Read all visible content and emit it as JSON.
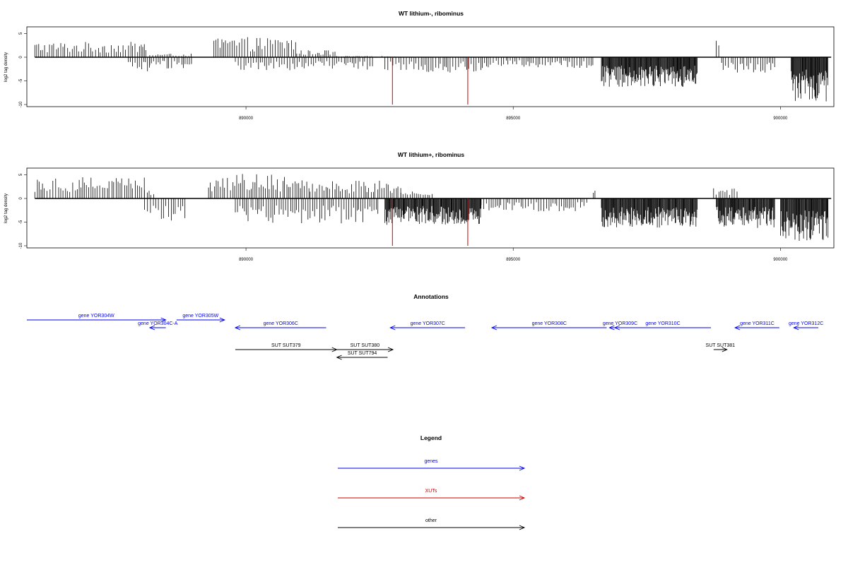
{
  "chart_data": [
    {
      "type": "bar",
      "title": "WT lithium-, ribominus",
      "ylabel": "log2 tag density",
      "ylim": [
        -10,
        6
      ],
      "yticks": [
        -10,
        -5,
        0,
        5
      ],
      "xlim": [
        885900,
        901000
      ],
      "xticks": [
        890000,
        895000,
        900000
      ],
      "series": [
        {
          "strand": "+",
          "color": "#000000",
          "regions": [
            {
              "start": 886050,
              "end": 888150,
              "density": 2.6
            },
            {
              "start": 888200,
              "end": 889000,
              "density": 0.6
            },
            {
              "start": 889400,
              "end": 890950,
              "density": 3.4
            },
            {
              "start": 890950,
              "end": 891700,
              "density": 1.2
            },
            {
              "start": 891700,
              "end": 892800,
              "density": 0.2
            },
            {
              "start": 898800,
              "end": 898900,
              "density": 2.8
            }
          ]
        },
        {
          "strand": "-",
          "color": "#000000",
          "regions": [
            {
              "start": 887800,
              "end": 888200,
              "density": -2.5
            },
            {
              "start": 888200,
              "end": 889000,
              "density": -2.0
            },
            {
              "start": 889800,
              "end": 892400,
              "density": -2.2
            },
            {
              "start": 892600,
              "end": 894500,
              "density": -2.6
            },
            {
              "start": 894500,
              "end": 896500,
              "density": -1.8
            },
            {
              "start": 896650,
              "end": 898450,
              "density": -5.0
            },
            {
              "start": 898900,
              "end": 899900,
              "density": -2.6
            },
            {
              "start": 900200,
              "end": 900900,
              "density": -7.5
            }
          ]
        },
        {
          "name": "XUTs",
          "color": "#cc0000",
          "x": [
            892740,
            894150
          ],
          "values": [
            -10,
            -10
          ]
        }
      ]
    },
    {
      "type": "bar",
      "title": "WT lithium+, ribominus",
      "ylabel": "log2 tag density",
      "ylim": [
        -10,
        6
      ],
      "yticks": [
        -10,
        -5,
        0,
        5
      ],
      "xlim": [
        885900,
        901000
      ],
      "xticks": [
        890000,
        895000,
        900000
      ],
      "series": [
        {
          "strand": "+",
          "color": "#000000",
          "regions": [
            {
              "start": 886050,
              "end": 888100,
              "density": 3.8
            },
            {
              "start": 888100,
              "end": 888300,
              "density": 1.5
            },
            {
              "start": 889300,
              "end": 891200,
              "density": 4.2
            },
            {
              "start": 891200,
              "end": 892900,
              "density": 3.0
            },
            {
              "start": 892900,
              "end": 893500,
              "density": 1.2
            },
            {
              "start": 896500,
              "end": 896550,
              "density": 2.0
            },
            {
              "start": 898750,
              "end": 899200,
              "density": 2.0
            }
          ]
        },
        {
          "strand": "-",
          "color": "#000000",
          "regions": [
            {
              "start": 888100,
              "end": 888900,
              "density": -4.0
            },
            {
              "start": 889800,
              "end": 892500,
              "density": -4.2
            },
            {
              "start": 892600,
              "end": 894400,
              "density": -4.5
            },
            {
              "start": 894400,
              "end": 896400,
              "density": -2.2
            },
            {
              "start": 896650,
              "end": 898450,
              "density": -5.0
            },
            {
              "start": 898800,
              "end": 899900,
              "density": -5.0
            },
            {
              "start": 900000,
              "end": 900900,
              "density": -7.2
            }
          ]
        },
        {
          "name": "XUTs",
          "color": "#cc0000",
          "x": [
            892740,
            894150
          ],
          "values": [
            -10,
            -10
          ]
        }
      ]
    }
  ],
  "annotations": {
    "title": "Annotations",
    "features": [
      {
        "label": "gene YOR304W",
        "type": "genes",
        "start": 885900,
        "end": 888500,
        "strand": "+",
        "row": 0
      },
      {
        "label": "gene YOR304C-A",
        "type": "genes",
        "start": 888200,
        "end": 888500,
        "strand": "-",
        "row": 1
      },
      {
        "label": "gene YOR305W",
        "type": "genes",
        "start": 888700,
        "end": 889600,
        "strand": "+",
        "row": 0
      },
      {
        "label": "gene YOR306C",
        "type": "genes",
        "start": 889800,
        "end": 891500,
        "strand": "-",
        "row": 1
      },
      {
        "label": "gene YOR307C",
        "type": "genes",
        "start": 892700,
        "end": 894100,
        "strand": "-",
        "row": 1
      },
      {
        "label": "gene YOR308C",
        "type": "genes",
        "start": 894600,
        "end": 896750,
        "strand": "-",
        "row": 1
      },
      {
        "label": "gene YOR309C",
        "type": "genes",
        "start": 896800,
        "end": 897200,
        "strand": "-",
        "row": 1
      },
      {
        "label": "gene YOR310C",
        "type": "genes",
        "start": 896900,
        "end": 898700,
        "strand": "-",
        "row": 1
      },
      {
        "label": "gene YOR311C",
        "type": "genes",
        "start": 899150,
        "end": 899980,
        "strand": "-",
        "row": 1
      },
      {
        "label": "gene YOR312C",
        "type": "genes",
        "start": 900250,
        "end": 901200,
        "strand": "-",
        "row": 1
      },
      {
        "label": "SUT SUT379",
        "type": "other",
        "start": 889800,
        "end": 891700,
        "strand": "+",
        "row": 2
      },
      {
        "label": "SUT SUT380",
        "type": "other",
        "start": 891700,
        "end": 892750,
        "strand": "+",
        "row": 2
      },
      {
        "label": "SUT SUT794",
        "type": "other",
        "start": 891700,
        "end": 892650,
        "strand": "-",
        "row": 3
      },
      {
        "label": "SUT SUT381",
        "type": "other",
        "start": 898750,
        "end": 899000,
        "strand": "+",
        "row": 2
      }
    ]
  },
  "legend": {
    "title": "Legend",
    "items": [
      {
        "label": "genes",
        "color": "#0000ee"
      },
      {
        "label": "XUTs",
        "color": "#cc0000"
      },
      {
        "label": "other",
        "color": "#000000"
      }
    ]
  }
}
